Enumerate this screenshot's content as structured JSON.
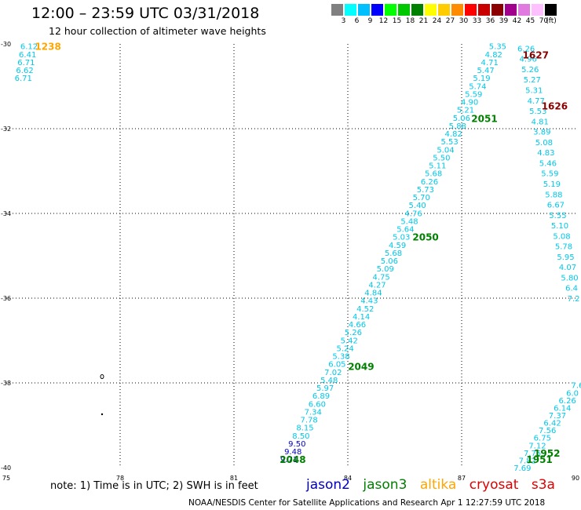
{
  "header": {
    "title": "12:00 – 23:59 UTC 03/31/2018",
    "subtitle": "12 hour collection of altimeter wave heights"
  },
  "legend": {
    "unit": "(ft)",
    "items": [
      {
        "label": "3",
        "color": "#808080"
      },
      {
        "label": "6",
        "color": "#00ffff"
      },
      {
        "label": "9",
        "color": "#00bfff"
      },
      {
        "label": "12",
        "color": "#0000ff"
      },
      {
        "label": "15",
        "color": "#00ff00"
      },
      {
        "label": "18",
        "color": "#00c800"
      },
      {
        "label": "21",
        "color": "#008000"
      },
      {
        "label": "24",
        "color": "#ffff00"
      },
      {
        "label": "27",
        "color": "#ffcc00"
      },
      {
        "label": "30",
        "color": "#ff8c00"
      },
      {
        "label": "33",
        "color": "#ff0000"
      },
      {
        "label": "36",
        "color": "#c80000"
      },
      {
        "label": "39",
        "color": "#8b0000"
      },
      {
        "label": "42",
        "color": "#a0008c"
      },
      {
        "label": "45",
        "color": "#e07ae0"
      },
      {
        "label": "70",
        "color": "#ffc0ff"
      },
      {
        "label": "",
        "color": "#000000"
      }
    ]
  },
  "map": {
    "lon_min": 75,
    "lon_max": 90,
    "lat_min": -40,
    "lat_max": -30,
    "lon_ticks": [
      "75",
      "78",
      "81",
      "84",
      "87",
      "90"
    ],
    "lat_ticks": [
      "-30",
      "-32",
      "-34",
      "-36",
      "-38",
      "-40"
    ]
  },
  "colors": {
    "cyan": "#00c8e8",
    "blue": "#0000c8",
    "jason3": "#008000",
    "altika": "#ffa500",
    "cryosat": "#8b0000",
    "s3a": "#ff0000"
  },
  "passes": [
    {
      "label": "1238",
      "color": "#ffa500",
      "lat": -30.05,
      "lon": 76.1
    },
    {
      "label": "1627",
      "color": "#8b0000",
      "lat": -30.25,
      "lon": 88.95
    },
    {
      "label": "1626",
      "color": "#8b0000",
      "lat": -31.45,
      "lon": 89.45
    },
    {
      "label": "2051",
      "color": "#008000",
      "lat": -31.75,
      "lon": 87.6
    },
    {
      "label": "2050",
      "color": "#008000",
      "lat": -34.55,
      "lon": 86.05
    },
    {
      "label": "2049",
      "color": "#008000",
      "lat": -37.6,
      "lon": 84.35
    },
    {
      "label": "2048",
      "color": "#008000",
      "lat": -39.8,
      "lon": 82.55
    },
    {
      "label": "1952",
      "color": "#008000",
      "lat": -39.65,
      "lon": 89.25
    },
    {
      "label": "1951",
      "color": "#008000",
      "lat": -39.8,
      "lon": 89.05
    }
  ],
  "tracks": [
    {
      "lat0": -30.05,
      "lon0": 75.6,
      "lat1": -30.8,
      "lon1": 75.45,
      "values": [
        "6.12",
        "6.41",
        "6.71",
        "6.62",
        "6.71"
      ]
    },
    {
      "lat0": -30.05,
      "lon0": 87.95,
      "lat1": -39.8,
      "lon1": 82.45,
      "values": [
        "5.35",
        "4.82",
        "4.71",
        "5.47",
        "5.19",
        "5.74",
        "5.59",
        "4.90",
        "5.21",
        "5.06",
        "5.88",
        "4.82",
        "5.53",
        "5.04",
        "5.50",
        "5.11",
        "5.68",
        "6.26",
        "5.73",
        "5.70",
        "5.40",
        "4.76",
        "5.48",
        "5.64",
        "5.03",
        "4.59",
        "5.68",
        "5.06",
        "5.09",
        "4.75",
        "4.27",
        "4.84",
        "4.43",
        "4.52",
        "4.14",
        "4.66",
        "5.26",
        "5.42",
        "5.24",
        "5.38",
        "6.05",
        "7.02",
        "5.48",
        "5.97",
        "6.89",
        "6.60",
        "7.34",
        "7.78",
        "8.15",
        "8.50",
        "9.50",
        "9.48",
        "9.71"
      ],
      "blue_from": 50
    },
    {
      "lat0": -30.1,
      "lon0": 88.7,
      "lat1": -36.0,
      "lon1": 89.95,
      "values": [
        "6.26",
        "4.96",
        "5.26",
        "5.27",
        "5.31",
        "4.77",
        "5.53",
        "4.81",
        "3.89",
        "5.08",
        "4.83",
        "5.46",
        "5.59",
        "5.19",
        "5.88",
        "6.67",
        "5.55",
        "5.10",
        "5.08",
        "5.78",
        "5.95",
        "4.07",
        "5.80",
        "6.4",
        "7.2"
      ]
    },
    {
      "lat0": -38.05,
      "lon0": 90.05,
      "lat1": -40.0,
      "lon1": 88.6,
      "values": [
        "7.6",
        "6.0",
        "6.26",
        "6.14",
        "7.37",
        "6.42",
        "7.56",
        "6.75",
        "7.12",
        "7.75",
        "7.82",
        "7.69"
      ]
    }
  ],
  "footer": {
    "note": "note:  1) Time is in UTC; 2) SWH is in feet",
    "satellites": [
      "jason2",
      "jason3",
      "altika",
      "cryosat",
      "s3a"
    ],
    "credit": "NOAA/NESDIS Center for Satellite Applications and Research    Apr  1 12:27:59 UTC 2018"
  }
}
